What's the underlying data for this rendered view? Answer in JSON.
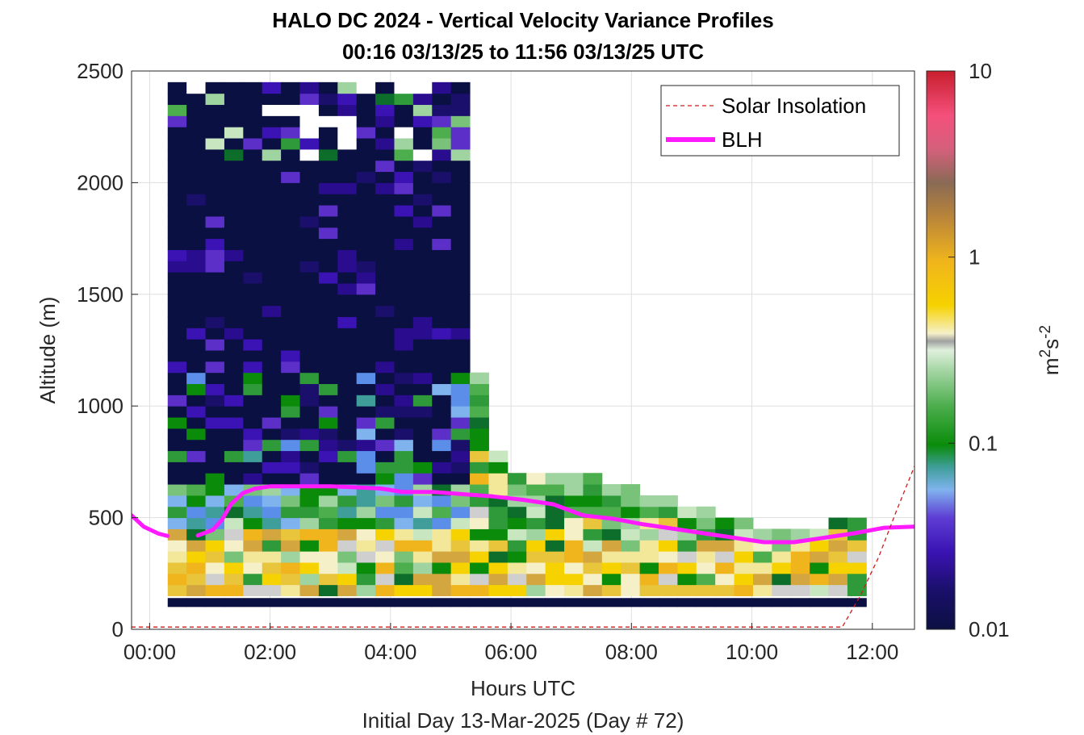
{
  "chart_data": {
    "type": "heatmap",
    "title": "HALO DC 2024 - Vertical Velocity Variance Profiles",
    "subtitle": "00:16 03/13/25 to 11:56 03/13/25  UTC",
    "xlabel": "Hours UTC",
    "xlabel2": "Initial Day 13-Mar-2025 (Day # 72)",
    "ylabel": "Altitude (m)",
    "xlim": [
      -0.3,
      12.7
    ],
    "ylim": [
      0,
      2500
    ],
    "x_ticks": [
      0,
      2,
      4,
      6,
      8,
      10,
      12
    ],
    "x_tick_labels": [
      "00:00",
      "02:00",
      "04:00",
      "06:00",
      "08:00",
      "10:00",
      "12:00"
    ],
    "y_ticks": [
      0,
      500,
      1000,
      1500,
      2000,
      2500
    ],
    "y_tick_labels": [
      "0",
      "500",
      "1000",
      "1500",
      "2000",
      "2500"
    ],
    "grid": true,
    "colorbar": {
      "label": "m²s⁻²",
      "scale": "log",
      "range": [
        0.01,
        10
      ],
      "ticks": [
        0.01,
        0.1,
        1,
        10
      ],
      "tick_labels": [
        "0.01",
        "0.1",
        "1",
        "10"
      ],
      "colors": [
        "#0b1042",
        "#2a0c8e",
        "#5b2fc8",
        "#7fb3ee",
        "#2f8e7a",
        "#0a8c0a",
        "#4cae4c",
        "#c8e6c0",
        "#f5f0c8",
        "#f6d200",
        "#f0b41c",
        "#b8843a",
        "#8a6a55",
        "#f4507c",
        "#c81e2d"
      ]
    },
    "legend": {
      "placement": "top-right",
      "entries": [
        {
          "label": "Solar Insolation",
          "color": "#d11a1a",
          "style": "dashed"
        },
        {
          "label": "BLH",
          "color": "#ff1aff",
          "style": "solid"
        }
      ]
    },
    "series": [
      {
        "name": "BLH",
        "x": [
          -0.3,
          -0.1,
          0.15,
          0.3,
          0.5,
          0.8,
          1.05,
          1.2,
          1.35,
          1.55,
          1.75,
          2.0,
          2.5,
          3.0,
          3.5,
          3.85,
          4.2,
          4.7,
          5.2,
          5.7,
          6.2,
          6.7,
          7.2,
          7.7,
          8.2,
          8.7,
          9.2,
          9.7,
          10.2,
          10.7,
          11.2,
          11.7,
          12.2,
          12.7
        ],
        "y": [
          510,
          460,
          428,
          418,
          null,
          420,
          445,
          490,
          560,
          610,
          630,
          640,
          640,
          640,
          635,
          630,
          615,
          615,
          605,
          595,
          580,
          560,
          510,
          495,
          470,
          450,
          430,
          410,
          390,
          390,
          410,
          430,
          455,
          460
        ]
      },
      {
        "name": "Solar Insolation",
        "x": [
          -0.3,
          11.5,
          11.8,
          12.1,
          12.4,
          12.7
        ],
        "y": [
          10,
          10,
          150,
          320,
          530,
          730
        ]
      }
    ],
    "heatmap": {
      "x_start": 0.3,
      "x_end": 11.9,
      "bin_hours": 0.32,
      "bin_height_m": 50,
      "value_units": "m^2 s^-2",
      "approx_profile_tops_m": [
        2450,
        2450,
        2450,
        2450,
        2450,
        2450,
        2450,
        2450,
        2450,
        2450,
        2450,
        2450,
        2450,
        2450,
        2450,
        2450,
        1150,
        800,
        700,
        700,
        700,
        700,
        700,
        650,
        650,
        600,
        600,
        550,
        550,
        500,
        500,
        450,
        450,
        450,
        450,
        500,
        500
      ]
    }
  }
}
